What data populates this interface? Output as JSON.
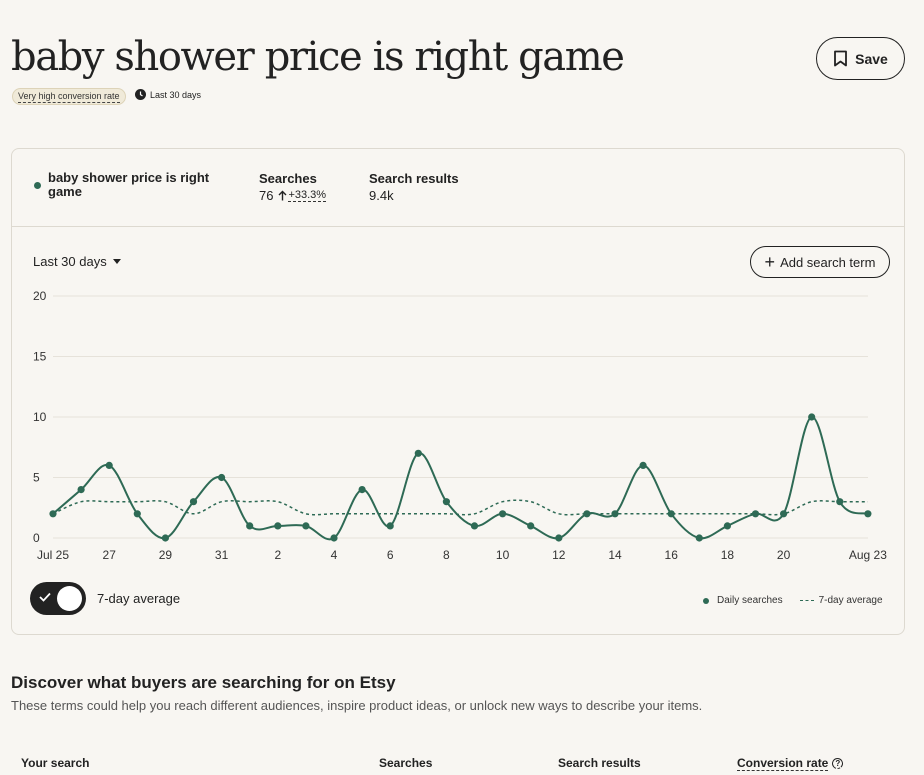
{
  "header": {
    "title": "baby shower price is right game",
    "save_label": "Save",
    "badge": "Very high conversion rate",
    "period": "Last 30 days"
  },
  "summary": {
    "term": "baby shower price is right game",
    "searches_label": "Searches",
    "searches_value": "76",
    "searches_change": "+33.3%",
    "results_label": "Search results",
    "results_value": "9.4k"
  },
  "controls": {
    "range": "Last 30 days",
    "add_term": "Add search term",
    "toggle_label": "7-day average"
  },
  "legend": {
    "daily": "Daily searches",
    "avg": "7-day average"
  },
  "colors": {
    "series": "#2e6a55",
    "grid": "#e6e2da"
  },
  "chart_data": {
    "type": "line",
    "ylim": [
      0,
      20
    ],
    "yticks": [
      "0",
      "5",
      "10",
      "15",
      "20"
    ],
    "xtick_labels": [
      "Jul 25",
      "27",
      "29",
      "31",
      "2",
      "4",
      "6",
      "8",
      "10",
      "12",
      "14",
      "16",
      "18",
      "20",
      "Aug 23"
    ],
    "series": [
      {
        "name": "Daily searches",
        "values": [
          2,
          4,
          6,
          2,
          0,
          3,
          5,
          1,
          1,
          1,
          0,
          4,
          1,
          7,
          3,
          1,
          2,
          1,
          0,
          2,
          2,
          6,
          2,
          0,
          1,
          2,
          2,
          10,
          3,
          2
        ]
      },
      {
        "name": "7-day average",
        "values": [
          2,
          3,
          3,
          3,
          3,
          2,
          3,
          3,
          3,
          2,
          2,
          2,
          2,
          2,
          2,
          2,
          3,
          3,
          2,
          2,
          2,
          2,
          2,
          2,
          2,
          2,
          2,
          3,
          3,
          3
        ]
      }
    ]
  },
  "discover": {
    "title": "Discover what buyers are searching for on Etsy",
    "subtitle": "These terms could help you reach different audiences, inspire product ideas, or unlock new ways to describe your items."
  },
  "table": {
    "col_search": "Your search",
    "col_searches": "Searches",
    "col_results": "Search results",
    "col_conversion": "Conversion rate",
    "help": "?"
  }
}
